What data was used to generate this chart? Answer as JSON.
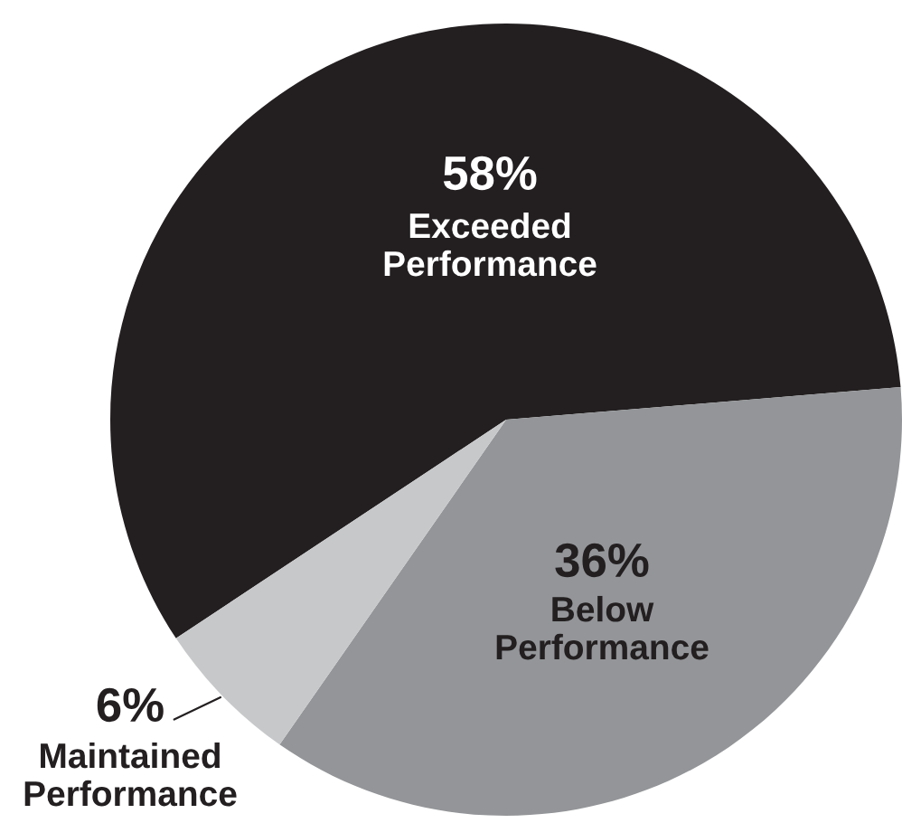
{
  "chart_data": {
    "type": "pie",
    "categories": [
      "Exceeded Performance",
      "Below Performance",
      "Maintained Performance"
    ],
    "values": [
      58,
      36,
      6
    ],
    "colors": [
      "#231f20",
      "#939598",
      "#c7c8ca"
    ],
    "value_labels": [
      "58%",
      "36%",
      "6%"
    ]
  }
}
